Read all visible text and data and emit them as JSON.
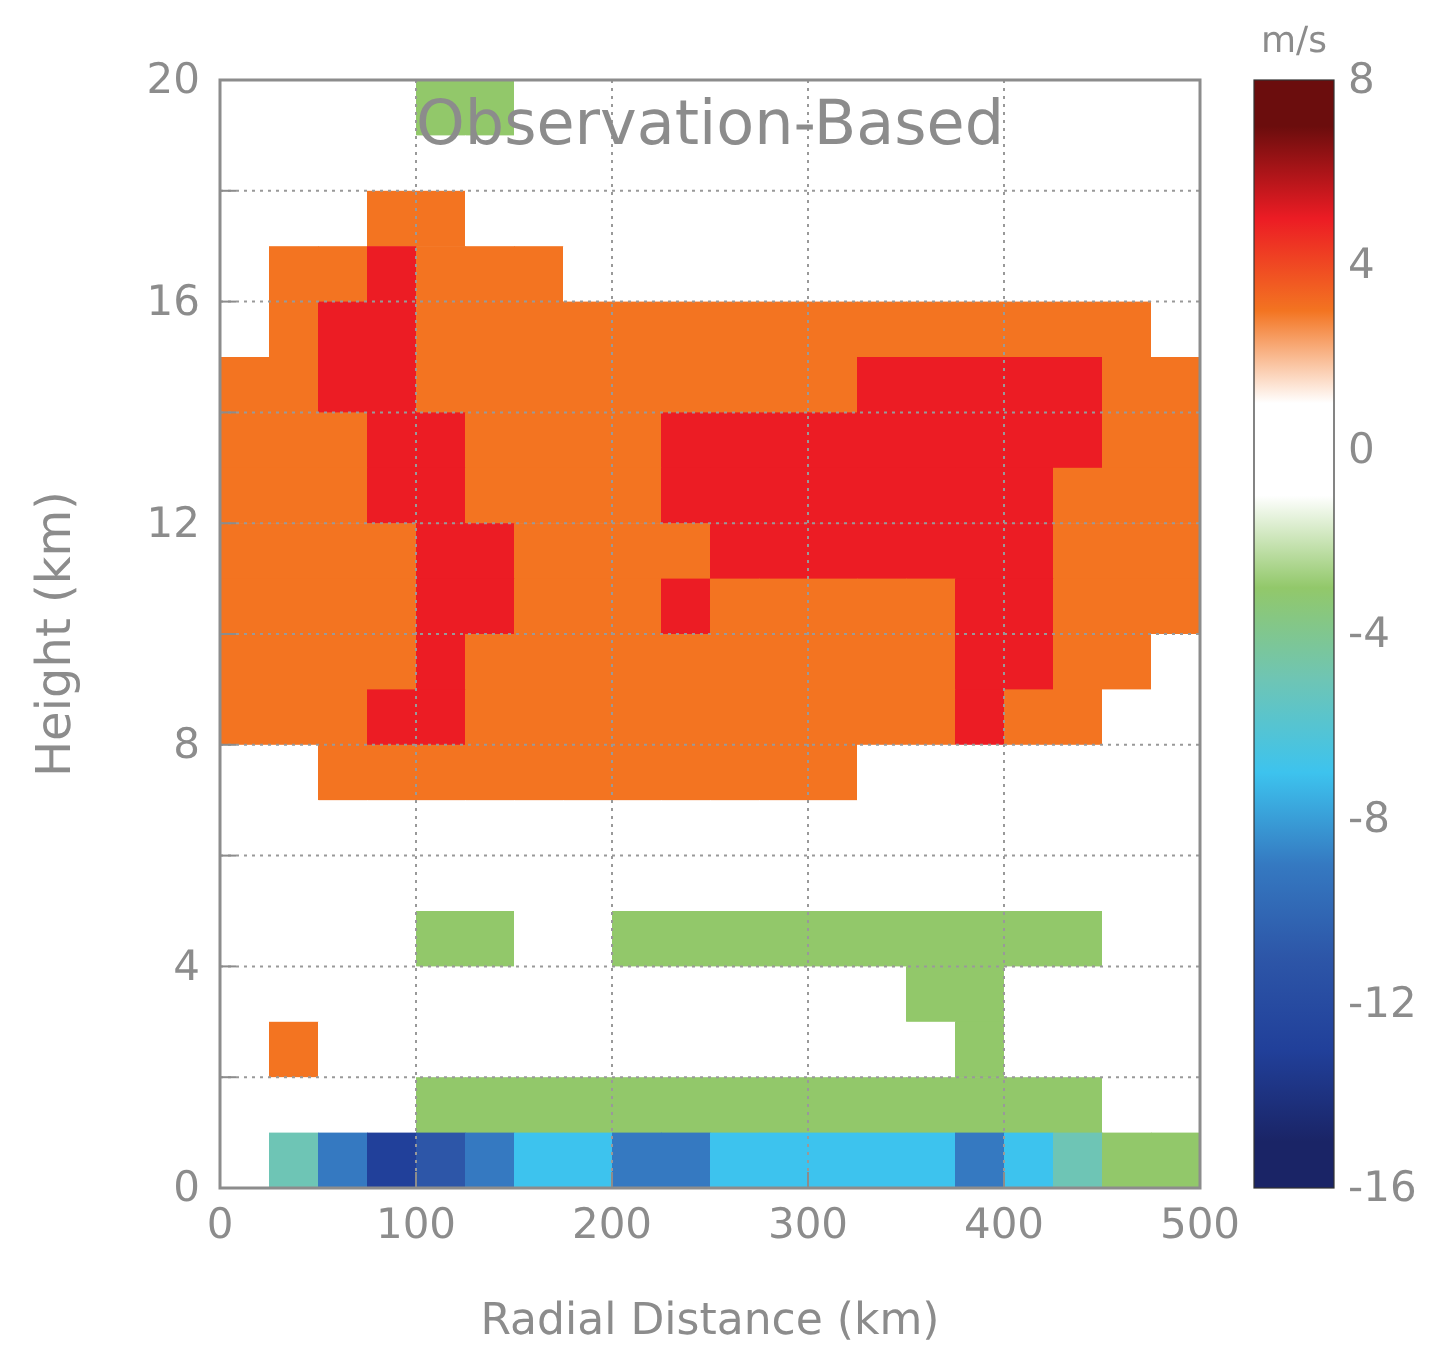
{
  "chart_data": {
    "type": "heatmap",
    "title": "Observation-Based",
    "xlabel": "Radial Distance (km)",
    "ylabel": "Height (km)",
    "clabel": "m/s",
    "x": [
      12.5,
      37.5,
      62.5,
      87.5,
      112.5,
      137.5,
      162.5,
      187.5,
      212.5,
      237.5,
      262.5,
      287.5,
      312.5,
      337.5,
      362.5,
      387.5,
      412.5,
      437.5,
      462.5,
      487.5
    ],
    "y": [
      19.5,
      18.5,
      17.5,
      16.5,
      15.5,
      14.5,
      13.5,
      12.5,
      11.5,
      10.5,
      9.5,
      8.5,
      7.5,
      6.5,
      5.5,
      4.5,
      3.5,
      2.5,
      1.5,
      0.5
    ],
    "cells": [
      [
        0,
        0,
        0,
        0,
        -3,
        -3,
        0,
        0,
        0,
        0,
        0,
        0,
        0,
        0,
        0,
        0,
        0,
        0,
        0,
        0
      ],
      [
        0,
        0,
        0,
        0,
        0,
        0,
        0,
        0,
        0,
        0,
        0,
        0,
        0,
        0,
        0,
        0,
        0,
        0,
        0,
        0
      ],
      [
        0,
        0,
        0,
        3,
        3,
        0,
        0,
        0,
        0,
        0,
        0,
        0,
        0,
        0,
        0,
        0,
        0,
        0,
        0,
        0
      ],
      [
        0,
        3,
        3,
        5,
        3,
        3,
        3,
        0,
        0,
        0,
        0,
        0,
        0,
        0,
        0,
        0,
        0,
        0,
        0,
        0
      ],
      [
        0,
        3,
        5,
        5,
        3,
        3,
        3,
        3,
        3,
        3,
        3,
        3,
        3,
        3,
        3,
        3,
        3,
        3,
        3,
        0
      ],
      [
        3,
        3,
        5,
        5,
        3,
        3,
        3,
        3,
        3,
        3,
        3,
        3,
        3,
        5,
        5,
        5,
        5,
        5,
        3,
        3
      ],
      [
        3,
        3,
        3,
        5,
        5,
        3,
        3,
        3,
        3,
        5,
        5,
        5,
        5,
        5,
        5,
        5,
        5,
        5,
        3,
        3
      ],
      [
        3,
        3,
        3,
        5,
        5,
        3,
        3,
        3,
        3,
        5,
        5,
        5,
        5,
        5,
        5,
        5,
        5,
        3,
        3,
        3
      ],
      [
        3,
        3,
        3,
        3,
        5,
        5,
        3,
        3,
        3,
        3,
        5,
        5,
        5,
        5,
        5,
        5,
        5,
        3,
        3,
        3
      ],
      [
        3,
        3,
        3,
        3,
        5,
        5,
        3,
        3,
        3,
        5,
        3,
        3,
        3,
        3,
        3,
        5,
        5,
        3,
        3,
        3
      ],
      [
        3,
        3,
        3,
        3,
        5,
        3,
        3,
        3,
        3,
        3,
        3,
        3,
        3,
        3,
        3,
        5,
        5,
        3,
        3,
        0
      ],
      [
        3,
        3,
        3,
        5,
        5,
        3,
        3,
        3,
        3,
        3,
        3,
        3,
        3,
        3,
        3,
        5,
        3,
        3,
        0,
        0
      ],
      [
        0,
        0,
        3,
        3,
        3,
        3,
        3,
        3,
        3,
        3,
        3,
        3,
        3,
        0,
        0,
        0,
        0,
        0,
        0,
        0
      ],
      [
        0,
        0,
        0,
        0,
        0,
        0,
        0,
        0,
        0,
        0,
        0,
        0,
        0,
        0,
        0,
        0,
        0,
        0,
        0,
        0
      ],
      [
        0,
        0,
        0,
        0,
        0,
        0,
        0,
        0,
        0,
        0,
        0,
        0,
        0,
        0,
        0,
        0,
        0,
        0,
        0,
        0
      ],
      [
        0,
        0,
        0,
        0,
        -3,
        -3,
        0,
        0,
        -3,
        -3,
        -3,
        -3,
        -3,
        -3,
        -3,
        -3,
        -3,
        -3,
        0,
        0
      ],
      [
        0,
        0,
        0,
        0,
        0,
        0,
        0,
        0,
        0,
        0,
        0,
        0,
        0,
        0,
        -3,
        -3,
        0,
        0,
        0,
        0
      ],
      [
        0,
        3,
        0,
        0,
        0,
        0,
        0,
        0,
        0,
        0,
        0,
        0,
        0,
        0,
        0,
        -3,
        0,
        0,
        0,
        0
      ],
      [
        0,
        0,
        0,
        0,
        -3,
        -3,
        -3,
        -3,
        -3,
        -3,
        -3,
        -3,
        -3,
        -3,
        -3,
        -3,
        -3,
        -3,
        0,
        0
      ],
      [
        0,
        -5,
        -9,
        -13,
        -11,
        -9,
        -7,
        -7,
        -9,
        -9,
        -7,
        -7,
        -7,
        -7,
        -7,
        -9,
        -7,
        -5,
        -3,
        -3
      ]
    ],
    "xlim": [
      0,
      500
    ],
    "xticks": [
      0,
      100,
      200,
      300,
      400,
      500
    ],
    "ylim": [
      0,
      20
    ],
    "yticks": [
      0,
      {
        "value": 2,
        "label": null
      },
      4,
      {
        "value": 6,
        "label": null
      },
      8,
      {
        "value": 10,
        "label": null
      },
      12,
      {
        "value": 14,
        "label": null
      },
      16,
      {
        "value": 18,
        "label": null
      },
      20
    ],
    "clim": [
      -16,
      8
    ],
    "cticks": [
      -16,
      -12,
      -8,
      -4,
      0,
      4,
      8
    ],
    "colors": [
      "#1a2466",
      "#21409a",
      "#2d56a8",
      "#3579c1",
      "#3dc3ee",
      "#6ec5b5",
      "#92c86a",
      "#ffffff",
      "#ffffff",
      "#f37421",
      "#ec1c24",
      "#6b0d0d"
    ],
    "grid": true
  }
}
